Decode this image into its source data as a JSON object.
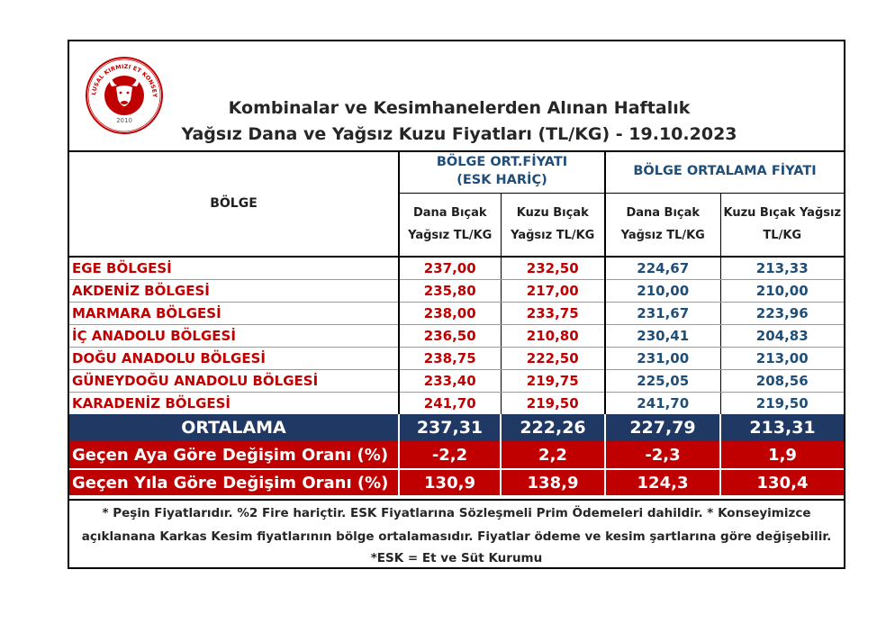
{
  "logo": {
    "arc_text": "ULUSAL KIRMIZI ET KONSEYİ",
    "year": "2010",
    "icon": "bull-head-icon",
    "color": "#c00000"
  },
  "title": {
    "line1": "Kombinalar ve Kesimhanelerden Alınan Haftalık",
    "line2": "Yağsız Dana ve Yağsız Kuzu Fiyatları (TL/KG) - 19.10.2023"
  },
  "table": {
    "region_header": "BÖLGE",
    "group1": {
      "line1": "BÖLGE ORT.FİYATI",
      "line2": "(ESK HARİÇ)"
    },
    "group2": {
      "label": "BÖLGE ORTALAMA FİYATI"
    },
    "sub_headers": [
      {
        "line1": "Dana Bıçak",
        "line2": "Yağsız TL/KG"
      },
      {
        "line1": "Kuzu Bıçak",
        "line2": "Yağsız TL/KG"
      },
      {
        "line1": "Dana Bıçak",
        "line2": "Yağsız TL/KG"
      },
      {
        "line1": "Kuzu Bıçak Yağsız",
        "line2": "TL/KG"
      }
    ],
    "rows": [
      {
        "region": "EGE BÖLGESİ",
        "values": [
          "237,00",
          "232,50",
          "224,67",
          "213,33"
        ]
      },
      {
        "region": "AKDENİZ BÖLGESİ",
        "values": [
          "235,80",
          "217,00",
          "210,00",
          "210,00"
        ]
      },
      {
        "region": "MARMARA BÖLGESİ",
        "values": [
          "238,00",
          "233,75",
          "231,67",
          "223,96"
        ]
      },
      {
        "region": "İÇ ANADOLU BÖLGESİ",
        "values": [
          "236,50",
          "210,80",
          "230,41",
          "204,83"
        ]
      },
      {
        "region": "DOĞU ANADOLU BÖLGESİ",
        "values": [
          "238,75",
          "222,50",
          "231,00",
          "213,00"
        ]
      },
      {
        "region": "GÜNEYDOĞU ANADOLU BÖLGESİ",
        "values": [
          "233,40",
          "219,75",
          "225,05",
          "208,56"
        ]
      },
      {
        "region": "KARADENİZ BÖLGESİ",
        "values": [
          "241,70",
          "219,50",
          "241,70",
          "219,50"
        ]
      }
    ],
    "average": {
      "label": "ORTALAMA",
      "values": [
        "237,31",
        "222,26",
        "227,79",
        "213,31"
      ]
    },
    "monthly_change": {
      "label": "Geçen Aya Göre Değişim Oranı (%)",
      "values": [
        "-2,2",
        "2,2",
        "-2,3",
        "1,9"
      ]
    },
    "yearly_change": {
      "label": "Geçen Yıla Göre Değişim Oranı (%)",
      "values": [
        "130,9",
        "138,9",
        "124,3",
        "130,4"
      ]
    }
  },
  "notes": {
    "line1": "* Peşin Fiyatlarıdır.  %2 Fire hariçtir. ESK Fiyatlarına Sözleşmeli Prim Ödemeleri dahildir. * Konseyimizce",
    "line2": "açıklanana Karkas Kesim fiyatlarının bölge ortalamasıdır. Fiyatlar  ödeme  ve kesim şartlarına göre değişebilir.",
    "line3": "*ESK = Et ve Süt Kurumu"
  },
  "colors": {
    "region_red": "#c00000",
    "value_blue": "#1f4e79",
    "average_bg": "#1f3864",
    "change_bg": "#c00000"
  }
}
